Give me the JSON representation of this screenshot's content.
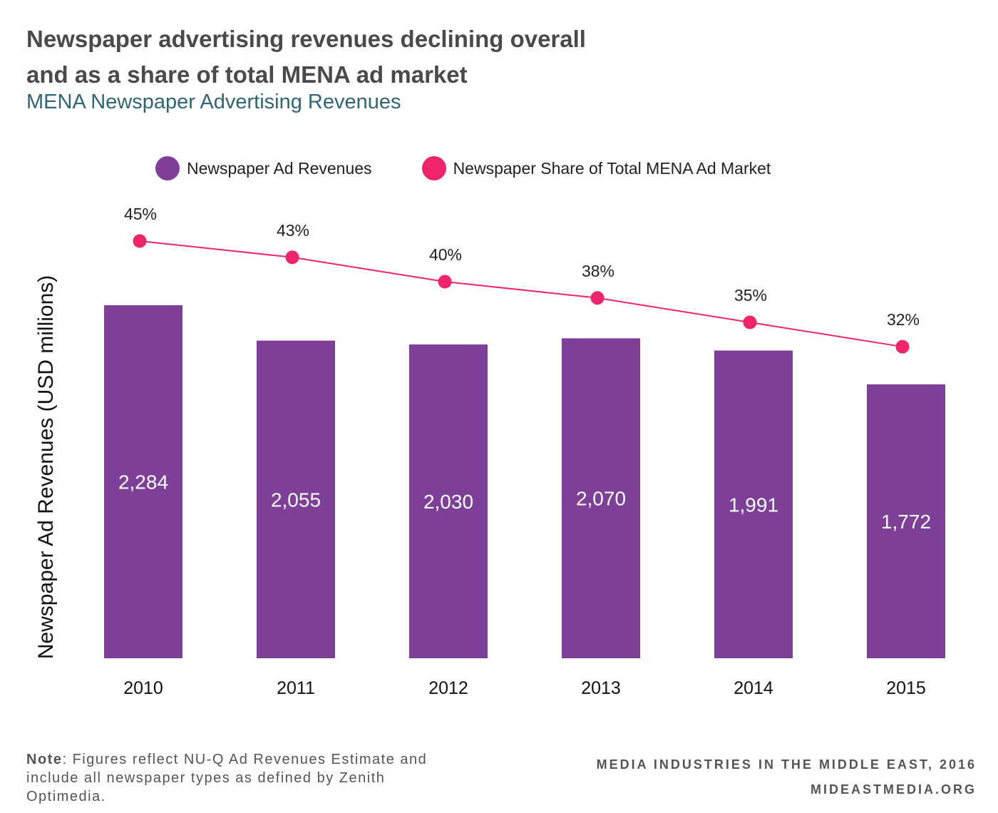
{
  "title_line1": "Newspaper advertising revenues declining overall",
  "title_line2": "and as a share of total MENA ad market",
  "subtitle": "MENA Newspaper Advertising Revenues",
  "note_label": "Note",
  "note_text": ": Figures reflect NU-Q Ad Revenues Estimate and include all newspaper types as defined by Zenith Optimedia.",
  "source_line1": "MEDIA INDUSTRIES IN THE MIDDLE EAST, 2016",
  "source_line2": "MIDEASTMEDIA.ORG",
  "colors": {
    "bar": "#7e3f98",
    "line": "#f0246b",
    "title": "#4a4a4a",
    "subtitle": "#2f6577"
  },
  "chart_data": {
    "type": "bar",
    "categories": [
      "2010",
      "2011",
      "2012",
      "2013",
      "2014",
      "2015"
    ],
    "ylabel": "Newspaper Ad Revenues (USD millions)",
    "series": [
      {
        "name": "Newspaper Ad Revenues",
        "type": "bar",
        "values": [
          2284,
          2055,
          2030,
          2070,
          1991,
          1772
        ],
        "labels": [
          "2,284",
          "2,055",
          "2,030",
          "2,070",
          "1,991",
          "1,772"
        ]
      },
      {
        "name": "Newspaper Share of Total MENA Ad Market",
        "type": "line",
        "values": [
          45,
          43,
          40,
          38,
          35,
          32
        ],
        "labels": [
          "45%",
          "43%",
          "40%",
          "38%",
          "35%",
          "32%"
        ]
      }
    ],
    "legend": "top",
    "grid": false
  }
}
